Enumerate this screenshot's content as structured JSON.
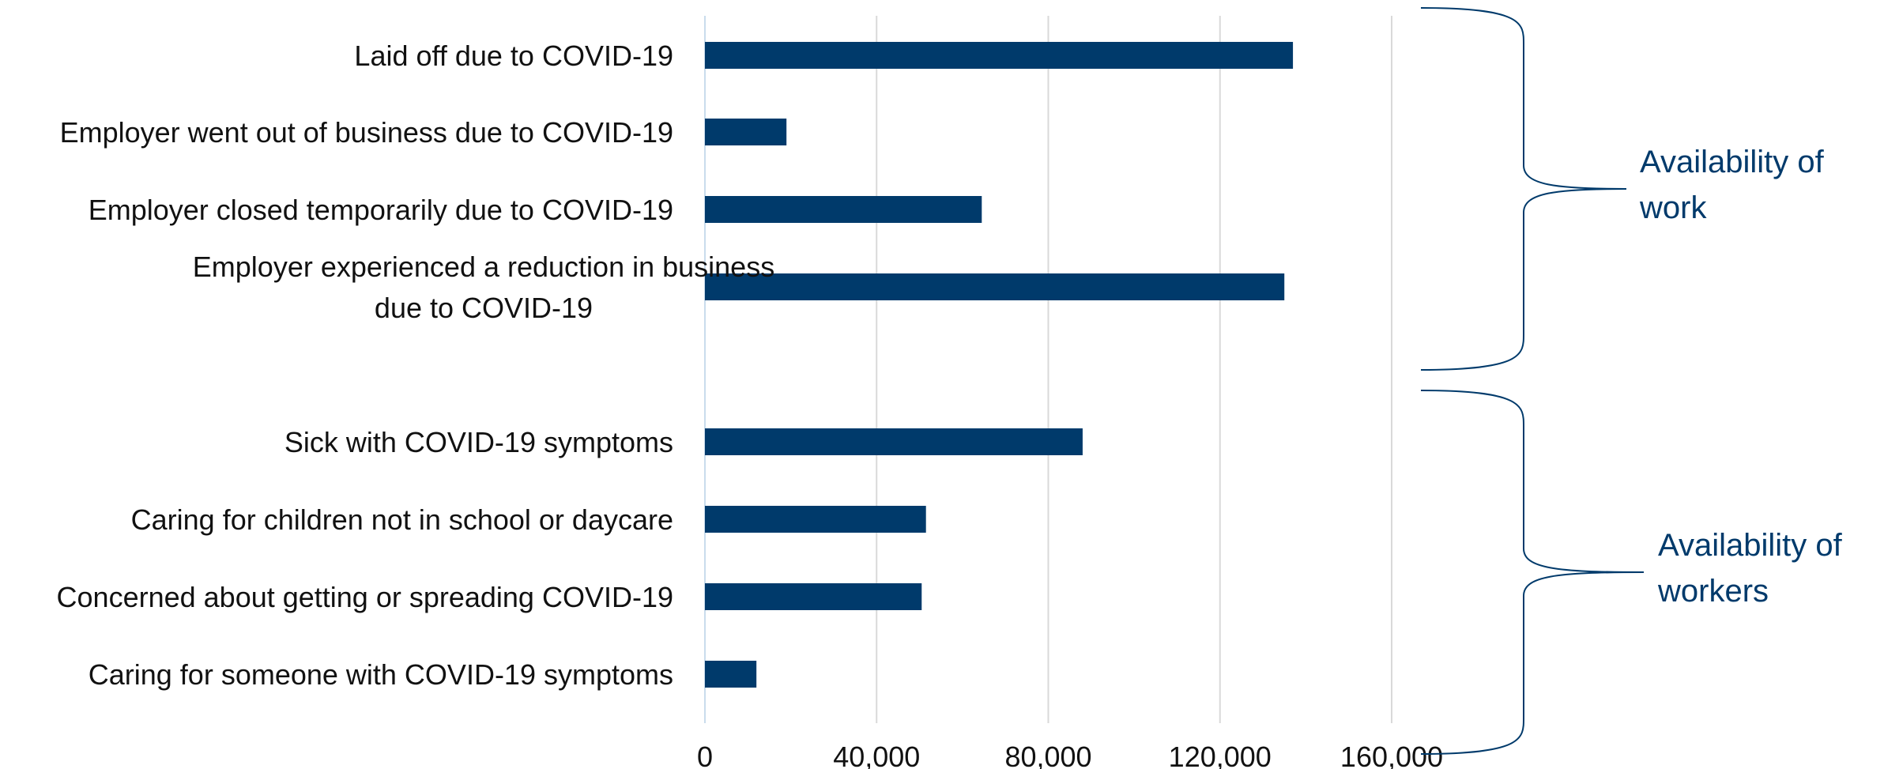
{
  "chart_data": {
    "type": "bar",
    "orientation": "horizontal",
    "categories": [
      [
        "Laid off due to COVID-19"
      ],
      [
        "Employer went out of business due to COVID-19"
      ],
      [
        "Employer closed temporarily due to COVID-19"
      ],
      [
        "Employer experienced a reduction in business",
        "due to COVID-19"
      ],
      [
        "Sick with COVID-19 symptoms"
      ],
      [
        "Caring for children not in school or daycare"
      ],
      [
        "Concerned about getting or spreading COVID-19"
      ],
      [
        "Caring for someone with COVID-19 symptoms"
      ]
    ],
    "values": [
      137000,
      19000,
      64500,
      135000,
      88000,
      51500,
      50500,
      12000
    ],
    "x_ticks": [
      0,
      40000,
      80000,
      120000,
      160000
    ],
    "x_tick_labels": [
      "0",
      "40,000",
      "80,000",
      "120,000",
      "160,000"
    ],
    "xlim": [
      0,
      160000
    ],
    "grid": "vertical",
    "bar_color": "#003a6b",
    "groups": [
      {
        "label": [
          "Availability of",
          "work"
        ],
        "categories": [
          0,
          1,
          2,
          3
        ]
      },
      {
        "label": [
          "Availability of",
          "workers"
        ],
        "categories": [
          4,
          5,
          6,
          7
        ]
      }
    ],
    "title": "",
    "xlabel": "",
    "ylabel": ""
  }
}
